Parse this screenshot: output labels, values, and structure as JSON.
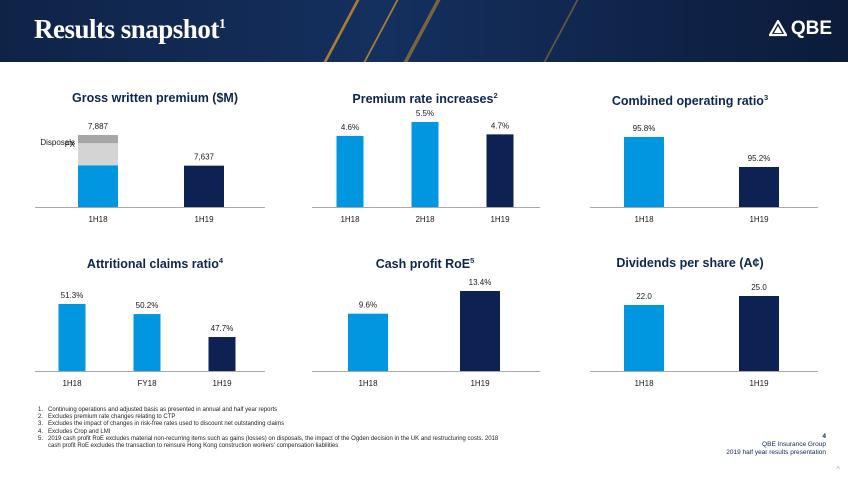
{
  "header": {
    "title": "Results snapshot",
    "title_sup": "1",
    "logo_text": "QBE"
  },
  "colors": {
    "light_blue": "#0097e0",
    "dark_navy": "#0d2253",
    "disposals_grey": "#a6a6a6",
    "fx_grey": "#d4d4d4",
    "title_navy": "#0d2650"
  },
  "chart_data": [
    {
      "id": "gwp",
      "type": "bar",
      "title": "Gross written premium ($M)",
      "title_sup": "",
      "categories": [
        "1H18",
        "1H19"
      ],
      "values": [
        7887,
        7637
      ],
      "value_labels": [
        "7,887",
        "7,637"
      ],
      "colors": [
        "#0097e0",
        "#0d2253"
      ],
      "stack_1H18": [
        {
          "name": "Disposals",
          "value": 7887,
          "color": "#a6a6a6"
        },
        {
          "name": "FX",
          "value": 7820,
          "color": "#d4d4d4"
        },
        {
          "name": "",
          "value": 7640,
          "color": "#0097e0"
        }
      ],
      "ylim": [
        7300,
        7950
      ]
    },
    {
      "id": "rate",
      "type": "bar",
      "title": "Premium rate increases",
      "title_sup": "2",
      "categories": [
        "1H18",
        "2H18",
        "1H19"
      ],
      "values": [
        4.6,
        5.5,
        4.7
      ],
      "value_labels": [
        "4.6%",
        "5.5%",
        "4.7%"
      ],
      "colors": [
        "#0097e0",
        "#0097e0",
        "#0d2253"
      ],
      "ylim": [
        0,
        6
      ]
    },
    {
      "id": "cor",
      "type": "bar",
      "title": "Combined operating ratio",
      "title_sup": "3",
      "categories": [
        "1H18",
        "1H19"
      ],
      "values": [
        95.8,
        95.2
      ],
      "value_labels": [
        "95.8%",
        "95.2%"
      ],
      "colors": [
        "#0097e0",
        "#0d2253"
      ],
      "ylim": [
        94.4,
        96.0
      ]
    },
    {
      "id": "acr",
      "type": "bar",
      "title": "Attritional claims ratio",
      "title_sup": "4",
      "categories": [
        "1H18",
        "FY18",
        "1H19"
      ],
      "values": [
        51.3,
        50.2,
        47.7
      ],
      "value_labels": [
        "51.3%",
        "50.2%",
        "47.7%"
      ],
      "colors": [
        "#0097e0",
        "#0097e0",
        "#0d2253"
      ],
      "ylim": [
        44,
        52
      ]
    },
    {
      "id": "roe",
      "type": "bar",
      "title": "Cash profit RoE",
      "title_sup": "5",
      "categories": [
        "1H18",
        "1H19"
      ],
      "values": [
        9.6,
        13.4
      ],
      "value_labels": [
        "9.6%",
        "13.4%"
      ],
      "colors": [
        "#0097e0",
        "#0d2253"
      ],
      "ylim": [
        0,
        14
      ]
    },
    {
      "id": "dps",
      "type": "bar",
      "title": "Dividends per share (A¢)",
      "title_sup": "",
      "categories": [
        "1H18",
        "1H19"
      ],
      "values": [
        22.0,
        25.0
      ],
      "value_labels": [
        "22.0",
        "25.0"
      ],
      "colors": [
        "#0097e0",
        "#0d2253"
      ],
      "ylim": [
        0,
        26
      ]
    }
  ],
  "footnotes": [
    {
      "num": "1.",
      "text": "Continuing operations and adjusted basis as presented in annual and half year reports"
    },
    {
      "num": "2.",
      "text": "Excludes premium rate changes relating to CTP"
    },
    {
      "num": "3.",
      "text": "Excludes the impact of changes in risk-free rates used to discount net outstanding claims"
    },
    {
      "num": "4.",
      "text": "Excludes Crop and LMI"
    },
    {
      "num": "5.",
      "text": "2019 cash profit RoE excludes material non-recurring items such as gains (losses) on disposals, the impact of the Ogden decision in the UK and restructuring costs. 2018 cash profit RoE excludes the transaction to reinsure Hong Kong construction workers' compensation liabilities"
    }
  ],
  "page_info": {
    "page_number": "4",
    "company": "QBE Insurance Group",
    "presentation": "2019 half year results presentation"
  },
  "nav_mark": "^"
}
